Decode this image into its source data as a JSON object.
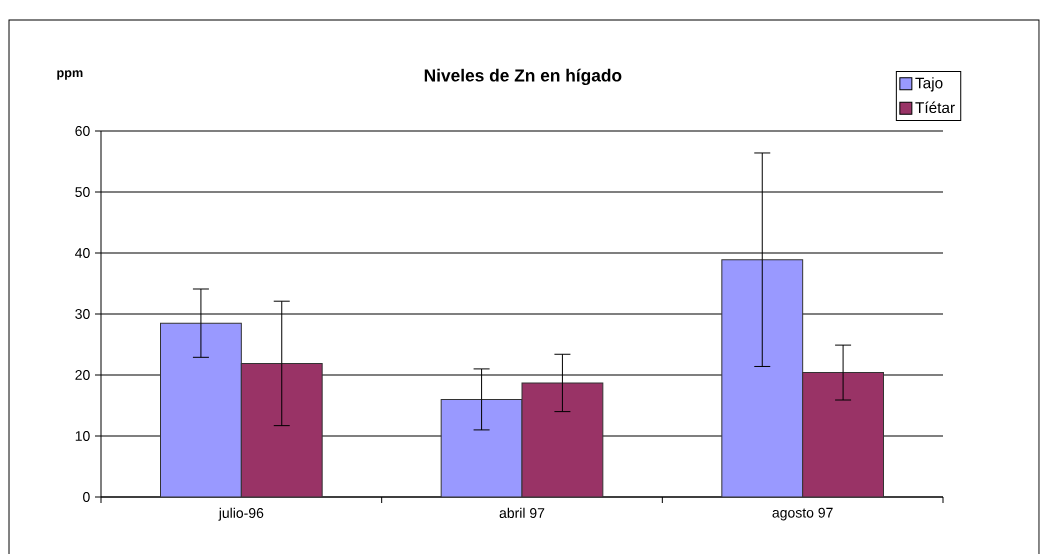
{
  "chart_data": {
    "type": "bar",
    "title": "Niveles de Zn en hígado",
    "ylabel": "ppm",
    "categories": [
      "julio-96",
      "abril 97",
      "agosto 97"
    ],
    "series": [
      {
        "name": "Tajo",
        "color": "#9999ff",
        "values": [
          28.5,
          16.0,
          38.9
        ],
        "errors": [
          5.6,
          5.0,
          17.5
        ]
      },
      {
        "name": "Tíétar",
        "color": "#993366",
        "values": [
          21.9,
          18.7,
          20.4
        ],
        "errors": [
          10.2,
          4.7,
          4.5
        ]
      }
    ],
    "ylim": [
      0,
      60
    ],
    "yticks": [
      0,
      10,
      20,
      30,
      40,
      50,
      60
    ],
    "grid": "y",
    "legend": "top right"
  }
}
